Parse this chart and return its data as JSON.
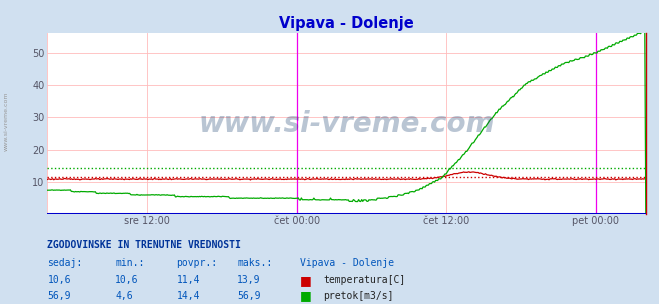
{
  "title": "Vipava - Dolenje",
  "title_color": "#0000cc",
  "bg_color": "#d0e0f0",
  "plot_bg_color": "#ffffff",
  "grid_color": "#ffbbbb",
  "ylim": [
    0,
    56
  ],
  "yticks": [
    10,
    20,
    30,
    40,
    50
  ],
  "xtick_labels": [
    "sre 12:00",
    "čet 00:00",
    "čet 12:00",
    "pet 00:00"
  ],
  "xtick_positions": [
    0.1667,
    0.4167,
    0.6667,
    0.9167
  ],
  "temp_color": "#cc0000",
  "flow_color": "#00aa00",
  "temp_avg": 11.4,
  "flow_avg": 14.4,
  "watermark": "www.si-vreme.com",
  "watermark_color": "#1a3f6f",
  "vline_color": "#ee00ee",
  "vline_positions": [
    0.4167,
    0.9167
  ],
  "bottom_line_color": "#0000cc",
  "right_spine_color": "#cc0000",
  "info_title": "ZGODOVINSKE IN TRENUTNE VREDNOSTI",
  "info_headers": [
    "sedaj:",
    "min.:",
    "povpr.:",
    "maks.:"
  ],
  "info_temp": [
    10.6,
    10.6,
    11.4,
    13.9
  ],
  "info_flow": [
    56.9,
    4.6,
    14.4,
    56.9
  ],
  "info_station": "Vipava - Dolenje",
  "info_color": "#0055bb",
  "info_title_color": "#003399",
  "left_label": "www.si-vreme.com"
}
